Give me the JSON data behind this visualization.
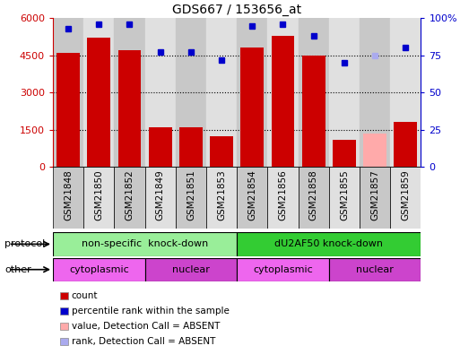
{
  "title": "GDS667 / 153656_at",
  "samples": [
    "GSM21848",
    "GSM21850",
    "GSM21852",
    "GSM21849",
    "GSM21851",
    "GSM21853",
    "GSM21854",
    "GSM21856",
    "GSM21858",
    "GSM21855",
    "GSM21857",
    "GSM21859"
  ],
  "counts": [
    4600,
    5200,
    4700,
    1600,
    1600,
    1250,
    4800,
    5300,
    4500,
    1100,
    1350,
    1800
  ],
  "ranks": [
    93,
    96,
    96,
    77,
    77,
    72,
    95,
    96,
    88,
    70,
    75,
    80
  ],
  "count_absent": [
    false,
    false,
    false,
    false,
    false,
    false,
    false,
    false,
    false,
    false,
    true,
    false
  ],
  "rank_absent": [
    false,
    false,
    false,
    false,
    false,
    false,
    false,
    false,
    false,
    false,
    true,
    false
  ],
  "bar_color_normal": "#cc0000",
  "bar_color_absent": "#ffaaaa",
  "dot_color_normal": "#0000cc",
  "dot_color_absent": "#aaaaee",
  "col_bg_even": "#c8c8c8",
  "col_bg_odd": "#e0e0e0",
  "ylim_left": [
    0,
    6000
  ],
  "ylim_right": [
    0,
    100
  ],
  "yticks_left": [
    0,
    1500,
    3000,
    4500,
    6000
  ],
  "yticks_right": [
    0,
    25,
    50,
    75,
    100
  ],
  "protocol_groups": [
    {
      "label": "non-specific  knock-down",
      "start": 0,
      "end": 6,
      "color": "#99ee99"
    },
    {
      "label": "dU2AF50 knock-down",
      "start": 6,
      "end": 12,
      "color": "#33cc33"
    }
  ],
  "other_groups": [
    {
      "label": "cytoplasmic",
      "start": 0,
      "end": 3,
      "color": "#ee66ee"
    },
    {
      "label": "nuclear",
      "start": 3,
      "end": 6,
      "color": "#cc44cc"
    },
    {
      "label": "cytoplasmic",
      "start": 6,
      "end": 9,
      "color": "#ee66ee"
    },
    {
      "label": "nuclear",
      "start": 9,
      "end": 12,
      "color": "#cc44cc"
    }
  ],
  "legend_items": [
    {
      "label": "count",
      "color": "#cc0000"
    },
    {
      "label": "percentile rank within the sample",
      "color": "#0000cc"
    },
    {
      "label": "value, Detection Call = ABSENT",
      "color": "#ffaaaa"
    },
    {
      "label": "rank, Detection Call = ABSENT",
      "color": "#aaaaee"
    }
  ],
  "protocol_label": "protocol",
  "other_label": "other"
}
